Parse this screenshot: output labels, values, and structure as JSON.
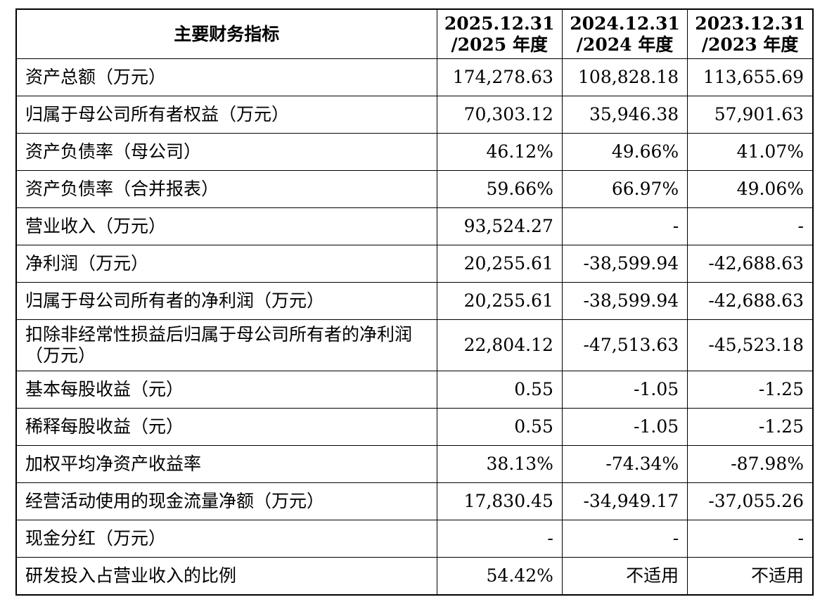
{
  "table": {
    "headers": [
      {
        "line1": "主要财务指标",
        "line2": ""
      },
      {
        "line1": "2025.12.31",
        "line2": "/2025 年度"
      },
      {
        "line1": "2024.12.31",
        "line2": "/2024 年度"
      },
      {
        "line1": "2023.12.31",
        "line2": "/2023 年度"
      }
    ],
    "rows": [
      {
        "label": "资产总额（万元）",
        "v2025": "174,278.63",
        "v2024": "108,828.18",
        "v2023": "113,655.69"
      },
      {
        "label": "归属于母公司所有者权益（万元）",
        "v2025": "70,303.12",
        "v2024": "35,946.38",
        "v2023": "57,901.63"
      },
      {
        "label": "资产负债率（母公司）",
        "v2025": "46.12%",
        "v2024": "49.66%",
        "v2023": "41.07%"
      },
      {
        "label": "资产负债率（合并报表）",
        "v2025": "59.66%",
        "v2024": "66.97%",
        "v2023": "49.06%"
      },
      {
        "label": "营业收入（万元）",
        "v2025": "93,524.27",
        "v2024": "-",
        "v2023": "-"
      },
      {
        "label": "净利润（万元）",
        "v2025": "20,255.61",
        "v2024": "-38,599.94",
        "v2023": "-42,688.63"
      },
      {
        "label": "归属于母公司所有者的净利润（万元）",
        "v2025": "20,255.61",
        "v2024": "-38,599.94",
        "v2023": "-42,688.63"
      },
      {
        "label": "扣除非经常性损益后归属于母公司所有者的净利润（万元）",
        "v2025": "22,804.12",
        "v2024": "-47,513.63",
        "v2023": "-45,523.18"
      },
      {
        "label": "基本每股收益（元）",
        "v2025": "0.55",
        "v2024": "-1.05",
        "v2023": "-1.25"
      },
      {
        "label": "稀释每股收益（元）",
        "v2025": "0.55",
        "v2024": "-1.05",
        "v2023": "-1.25"
      },
      {
        "label": "加权平均净资产收益率",
        "v2025": "38.13%",
        "v2024": "-74.34%",
        "v2023": "-87.98%"
      },
      {
        "label": "经营活动使用的现金流量净额（万元）",
        "v2025": "17,830.45",
        "v2024": "-34,949.17",
        "v2023": "-37,055.26"
      },
      {
        "label": "现金分红（万元）",
        "v2025": "-",
        "v2024": "-",
        "v2023": "-"
      },
      {
        "label": "研发投入占营业收入的比例",
        "v2025": "54.42%",
        "v2024": "不适用",
        "v2023": "不适用"
      }
    ]
  }
}
